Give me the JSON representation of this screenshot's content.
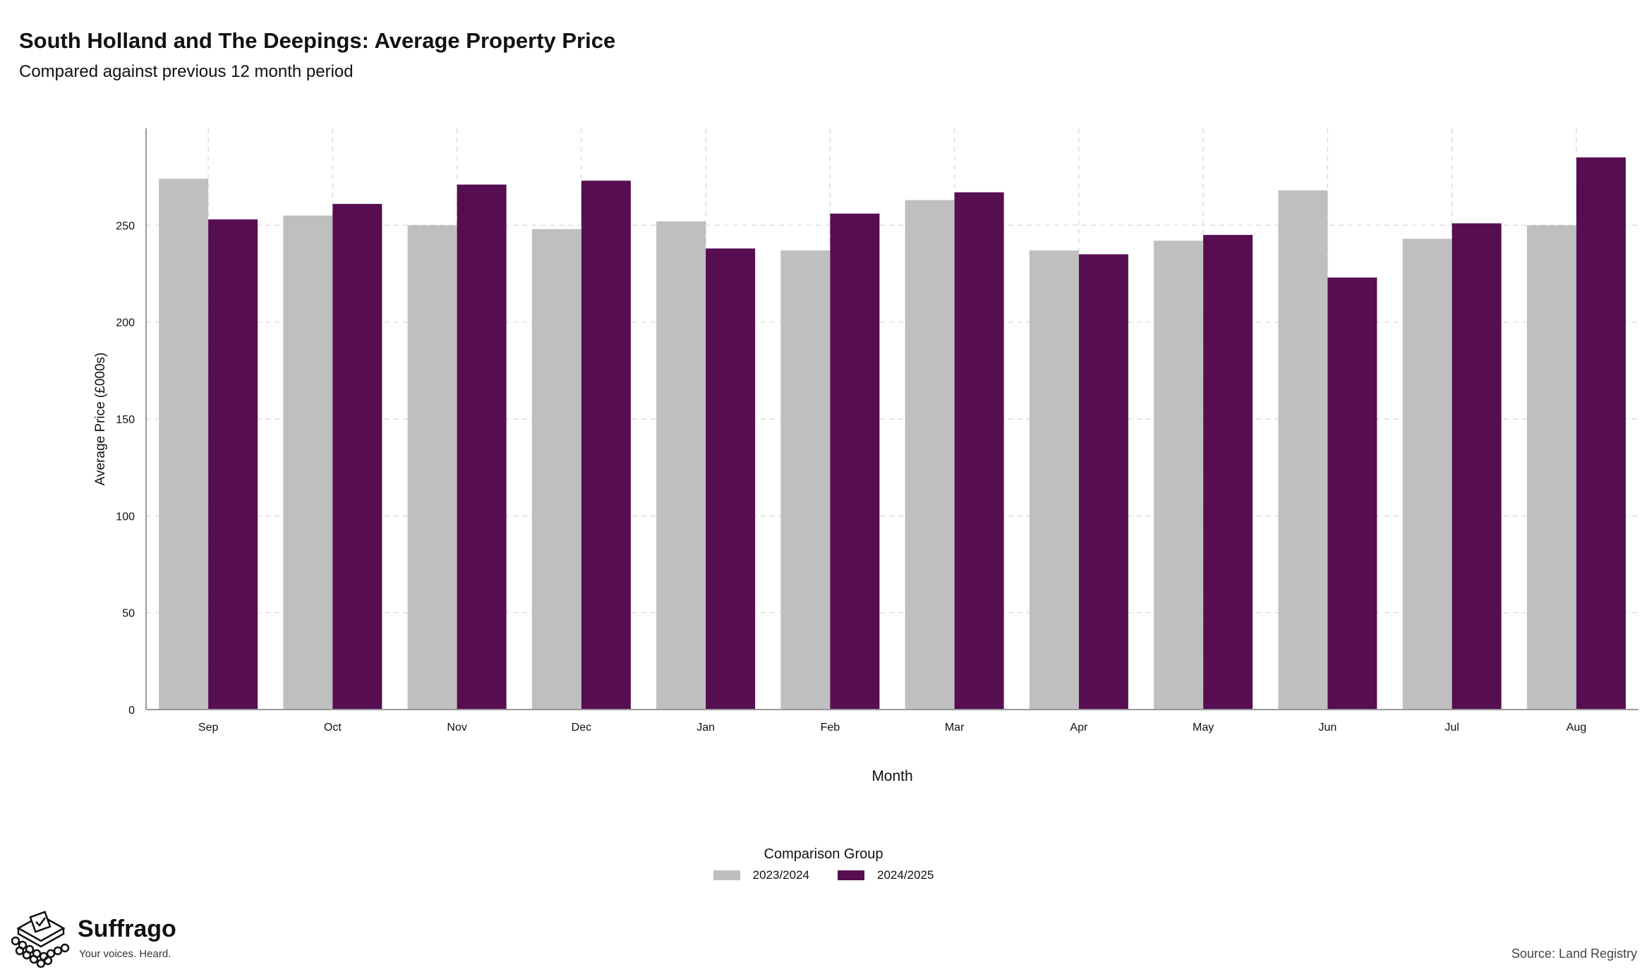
{
  "header": {
    "title": "South Holland and The Deepings: Average Property Price",
    "subtitle": "Compared against previous 12 month period"
  },
  "legend": {
    "title": "Comparison Group",
    "items": [
      {
        "label": "2023/2024",
        "color": "#bfbfbf"
      },
      {
        "label": "2024/2025",
        "color": "#560d52"
      }
    ]
  },
  "brand": {
    "name": "Suffrago",
    "tagline": "Your voices. Heard."
  },
  "source": "Source: Land Registry",
  "chart_data": {
    "type": "bar",
    "title": "South Holland and The Deepings: Average Property Price",
    "subtitle": "Compared against previous 12 month period",
    "xlabel": "Month",
    "ylabel": "Average Price (£000s)",
    "categories": [
      "Sep",
      "Oct",
      "Nov",
      "Dec",
      "Jan",
      "Feb",
      "Mar",
      "Apr",
      "May",
      "Jun",
      "Jul",
      "Aug"
    ],
    "series": [
      {
        "name": "2023/2024",
        "color": "#bfbfbf",
        "values": [
          274,
          255,
          250,
          248,
          252,
          237,
          263,
          237,
          242,
          268,
          243,
          250
        ]
      },
      {
        "name": "2024/2025",
        "color": "#560d52",
        "values": [
          253,
          261,
          271,
          273,
          238,
          256,
          267,
          235,
          245,
          223,
          251,
          285
        ]
      }
    ],
    "ylim": [
      0,
      300
    ],
    "yticks": [
      0,
      50,
      100,
      150,
      200,
      250
    ],
    "grid": true,
    "legend_position": "bottom"
  }
}
